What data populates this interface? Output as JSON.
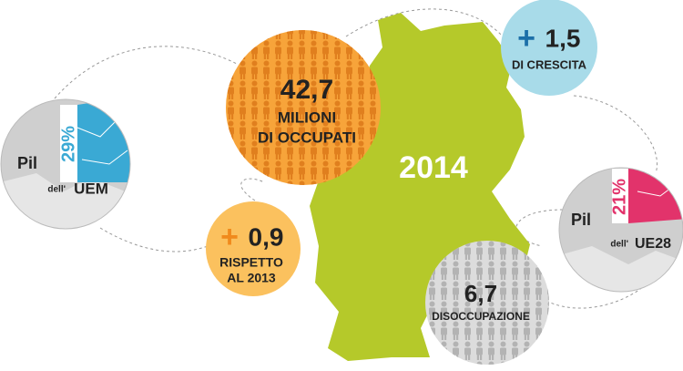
{
  "year": "2014",
  "employed": {
    "value": "42,7",
    "label_lines": [
      "MILIONI",
      "DI OCCUPATI"
    ]
  },
  "growth": {
    "sign": "+",
    "value": "1,5",
    "label": "DI CRESCITA"
  },
  "change": {
    "sign": "+",
    "value": "0,9",
    "label_lines": [
      "RISPETTO",
      "AL 2013"
    ]
  },
  "unemployment": {
    "value": "6,7",
    "label": "DISOCCUPAZIONE"
  },
  "gdp_uem": {
    "prefix": "Pil",
    "share": "29%",
    "of": "dell'",
    "area": "UEM"
  },
  "gdp_ue28": {
    "prefix": "Pil",
    "share": "21%",
    "of": "dell'",
    "area": "UE28"
  }
}
